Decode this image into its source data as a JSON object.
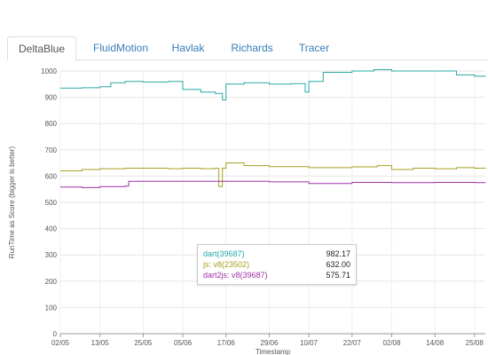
{
  "tabs": [
    {
      "label": "DeltaBlue",
      "active": true
    },
    {
      "label": "FluidMotion",
      "active": false
    },
    {
      "label": "Havlak",
      "active": false
    },
    {
      "label": "Richards",
      "active": false
    },
    {
      "label": "Tracer",
      "active": false
    }
  ],
  "chart_data": {
    "type": "line",
    "xlabel": "Timestamp",
    "ylabel": "RunTime as Score (bigger is better)",
    "ylim": [
      0,
      1000
    ],
    "y_ticks": [
      0,
      100,
      200,
      300,
      400,
      500,
      600,
      700,
      800,
      900,
      1000
    ],
    "x_ticks": [
      "02/05",
      "13/05",
      "25/05",
      "05/06",
      "17/06",
      "29/06",
      "10/07",
      "22/07",
      "02/08",
      "14/08",
      "25/08"
    ],
    "grid": true,
    "series": [
      {
        "name": "dart(39687)",
        "color": "#2aa8a8",
        "values": [
          [
            "02/05",
            935
          ],
          [
            "08/05",
            936
          ],
          [
            "13/05",
            940
          ],
          [
            "16/05",
            955
          ],
          [
            "20/05",
            960
          ],
          [
            "25/05",
            958
          ],
          [
            "01/06",
            960
          ],
          [
            "05/06",
            930
          ],
          [
            "10/06",
            920
          ],
          [
            "14/06",
            915
          ],
          [
            "16/06",
            890
          ],
          [
            "17/06",
            950
          ],
          [
            "22/06",
            955
          ],
          [
            "29/06",
            950
          ],
          [
            "05/07",
            952
          ],
          [
            "09/07",
            920
          ],
          [
            "10/07",
            960
          ],
          [
            "14/07",
            995
          ],
          [
            "22/07",
            1000
          ],
          [
            "28/07",
            1005
          ],
          [
            "02/08",
            1000
          ],
          [
            "10/08",
            1000
          ],
          [
            "14/08",
            1000
          ],
          [
            "20/08",
            985
          ],
          [
            "25/08",
            980
          ],
          [
            "28/08",
            982
          ]
        ]
      },
      {
        "name": "js: v8(23502)",
        "color": "#a8a020",
        "values": [
          [
            "02/05",
            620
          ],
          [
            "08/05",
            625
          ],
          [
            "13/05",
            628
          ],
          [
            "20/05",
            630
          ],
          [
            "25/05",
            630
          ],
          [
            "01/06",
            628
          ],
          [
            "05/06",
            630
          ],
          [
            "10/06",
            628
          ],
          [
            "14/06",
            630
          ],
          [
            "15/06",
            560
          ],
          [
            "16/06",
            630
          ],
          [
            "17/06",
            650
          ],
          [
            "22/06",
            640
          ],
          [
            "29/06",
            636
          ],
          [
            "05/07",
            636
          ],
          [
            "10/07",
            632
          ],
          [
            "22/07",
            635
          ],
          [
            "29/07",
            640
          ],
          [
            "02/08",
            625
          ],
          [
            "08/08",
            630
          ],
          [
            "14/08",
            628
          ],
          [
            "20/08",
            632
          ],
          [
            "25/08",
            630
          ],
          [
            "28/08",
            632
          ]
        ]
      },
      {
        "name": "dart2js: v8(39687)",
        "color": "#a030a8",
        "values": [
          [
            "02/05",
            558
          ],
          [
            "08/05",
            556
          ],
          [
            "13/05",
            560
          ],
          [
            "20/05",
            562
          ],
          [
            "21/05",
            580
          ],
          [
            "25/05",
            580
          ],
          [
            "05/06",
            580
          ],
          [
            "17/06",
            580
          ],
          [
            "29/06",
            578
          ],
          [
            "10/07",
            572
          ],
          [
            "22/07",
            576
          ],
          [
            "02/08",
            575
          ],
          [
            "14/08",
            576
          ],
          [
            "25/08",
            575
          ],
          [
            "28/08",
            576
          ]
        ]
      }
    ]
  },
  "tooltip": {
    "rows": [
      {
        "name": "dart(39687)",
        "value": "982.17",
        "color": "#2aa8a8"
      },
      {
        "name": "js: v8(23502)",
        "value": "632.00",
        "color": "#a8a020"
      },
      {
        "name": "dart2js: v8(39687)",
        "value": "575.71",
        "color": "#a030a8"
      }
    ]
  }
}
